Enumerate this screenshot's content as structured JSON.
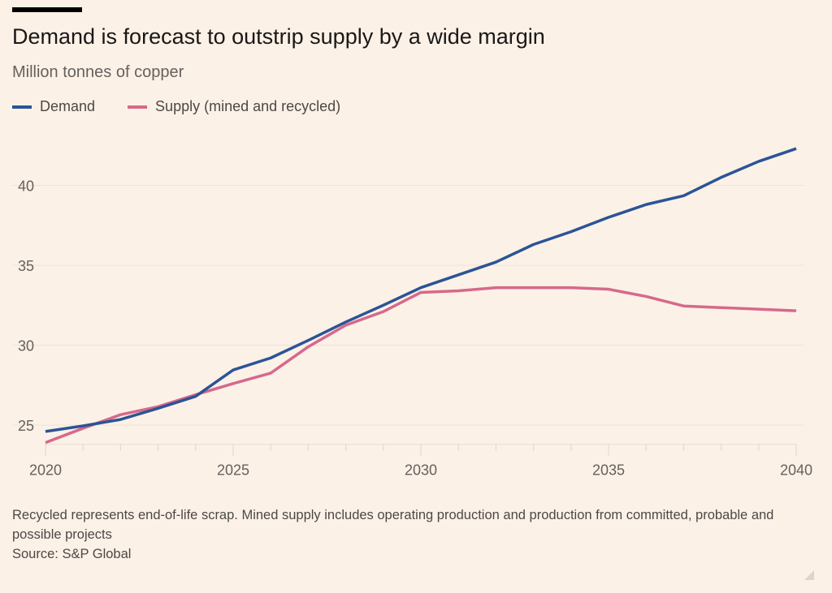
{
  "chart_data": {
    "type": "line",
    "title": "Demand is forecast to outstrip supply by a wide margin",
    "subtitle": "Million tonnes of copper",
    "xlabel": "",
    "ylabel": "",
    "x": [
      2020,
      2021,
      2022,
      2023,
      2024,
      2025,
      2026,
      2027,
      2028,
      2029,
      2030,
      2031,
      2032,
      2033,
      2034,
      2035,
      2036,
      2037,
      2038,
      2039,
      2040
    ],
    "x_ticks": [
      "2020",
      "2025",
      "2030",
      "2035",
      "2040"
    ],
    "y_ticks": [
      "25",
      "30",
      "35",
      "40"
    ],
    "xlim": [
      2020,
      2040
    ],
    "ylim": [
      23.8,
      43.1
    ],
    "grid": true,
    "legend_position": "top-left",
    "series": [
      {
        "name": "Demand",
        "color": "#2b5496",
        "values": [
          24.6,
          24.95,
          25.35,
          26.05,
          26.8,
          28.45,
          29.2,
          30.3,
          31.45,
          32.5,
          33.6,
          34.4,
          35.2,
          36.3,
          37.1,
          38.0,
          38.8,
          39.35,
          40.5,
          41.5,
          42.3
        ]
      },
      {
        "name": "Supply (mined and recycled)",
        "color": "#d6698b",
        "values": [
          23.9,
          24.8,
          25.65,
          26.15,
          26.9,
          27.6,
          28.25,
          29.9,
          31.25,
          32.1,
          33.3,
          33.4,
          33.6,
          33.6,
          33.6,
          33.5,
          33.05,
          32.45,
          32.35,
          32.25,
          32.15
        ]
      }
    ]
  },
  "footer": {
    "note": "Recycled represents end-of-life scrap. Mined supply includes operating production and production from committed, probable and possible projects",
    "source": "Source: S&P Global"
  }
}
